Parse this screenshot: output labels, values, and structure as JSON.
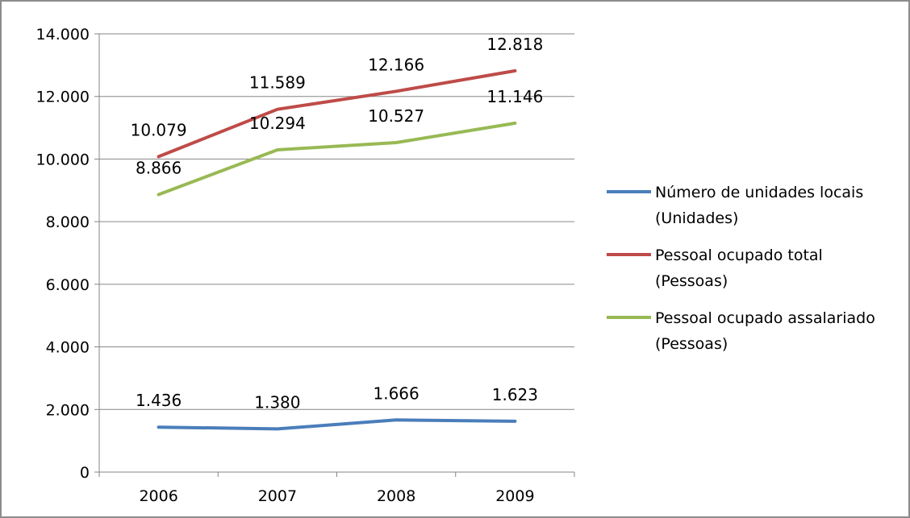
{
  "chart_data": {
    "type": "line",
    "categories": [
      "2006",
      "2007",
      "2008",
      "2009"
    ],
    "ylim": [
      0,
      14000
    ],
    "yticks": [
      0,
      2000,
      4000,
      6000,
      8000,
      10000,
      12000,
      14000
    ],
    "ytick_labels": [
      "0",
      "2.000",
      "4.000",
      "6.000",
      "8.000",
      "10.000",
      "12.000",
      "14.000"
    ],
    "grid": true,
    "legend_position": "right",
    "series": [
      {
        "name_line1": "Número de unidades locais",
        "name_line2": "(Unidades)",
        "color": "#4a7ebb",
        "values": [
          1436,
          1380,
          1666,
          1623
        ],
        "labels": [
          "1.436",
          "1.380",
          "1.666",
          "1.623"
        ]
      },
      {
        "name_line1": "Pessoal ocupado total",
        "name_line2": "(Pessoas)",
        "color": "#be4b48",
        "values": [
          10079,
          11589,
          12166,
          12818
        ],
        "labels": [
          "10.079",
          "11.589",
          "12.166",
          "12.818"
        ]
      },
      {
        "name_line1": "Pessoal ocupado assalariado",
        "name_line2": "(Pessoas)",
        "color": "#98b954",
        "values": [
          8866,
          10294,
          10527,
          11146
        ],
        "labels": [
          "8.866",
          "10.294",
          "10.527",
          "11.146"
        ]
      }
    ]
  }
}
